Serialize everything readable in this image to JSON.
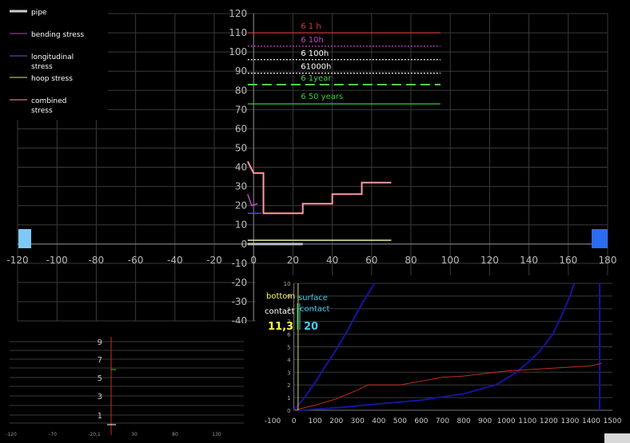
{
  "main_chart": {
    "x_ticks": [
      "-120",
      "-100",
      "-80",
      "-60",
      "-40",
      "-20",
      "0",
      "20",
      "40",
      "60",
      "80",
      "100",
      "120",
      "140",
      "160",
      "180"
    ],
    "y_ticks": [
      "120",
      "110",
      "100",
      "90",
      "80",
      "70",
      "60",
      "50",
      "40",
      "30",
      "20",
      "10",
      "0",
      "-10",
      "-20",
      "-30",
      "-40"
    ],
    "legend": [
      {
        "label": "pipe",
        "color": "#cccccc"
      },
      {
        "label": "bending stress",
        "color": "#b04ab0"
      },
      {
        "label": "longitudinal stress",
        "color": "#5a5ad8"
      },
      {
        "label": "hoop stress",
        "color": "#d8e870"
      },
      {
        "label": "combined stress",
        "color": "#ff9aa0"
      }
    ],
    "sigma_lines": [
      {
        "label": "6 1 h",
        "value": 110,
        "color": "#d83a3a",
        "style": "solid"
      },
      {
        "label": "6 10h",
        "value": 103,
        "color": "#cc44cc",
        "style": "dotted"
      },
      {
        "label": "6 100h",
        "value": 96,
        "color": "#ffffff",
        "style": "dotted"
      },
      {
        "label": "61000h",
        "value": 89,
        "color": "#ffffff",
        "style": "dotted"
      },
      {
        "label": "6 1year",
        "value": 83,
        "color": "#55cc55",
        "style": "dashed"
      },
      {
        "label": "6 50 years",
        "value": 73,
        "color": "#33cc33",
        "style": "solid"
      }
    ]
  },
  "bottom_left_chart": {
    "y_ticks": [
      "9",
      "7",
      "5",
      "3",
      "1"
    ],
    "x_ticks": [
      "-120",
      "-70",
      "-20,1",
      "30",
      "80",
      "130"
    ]
  },
  "bottom_right_chart": {
    "x_ticks": [
      "-100",
      "0",
      "100",
      "200",
      "300",
      "400",
      "500",
      "600",
      "700",
      "800",
      "900",
      "1000",
      "1100",
      "1200",
      "1300",
      "1400",
      "1500"
    ],
    "y_ticks": [
      "10",
      "9",
      "8",
      "7",
      "6",
      "5",
      "4",
      "3",
      "2",
      "1",
      "0"
    ],
    "bottom_label": "bottom",
    "contact_label": "contact",
    "surface_label": "surface",
    "surface_contact_label": "contact",
    "bottom_value": "11,3",
    "surface_value": "20"
  },
  "chart_data": [
    {
      "type": "line",
      "title": "",
      "xlim": [
        -120,
        180
      ],
      "ylim": [
        -40,
        120
      ],
      "grid": true,
      "legend_placement": "top-left",
      "series": [
        {
          "name": "pipe",
          "points": [
            [
              -3,
              0
            ],
            [
              25,
              0
            ]
          ]
        },
        {
          "name": "bending stress",
          "points": [
            [
              -3,
              26
            ],
            [
              -1,
              20
            ],
            [
              2,
              21
            ]
          ]
        },
        {
          "name": "longitudinal stress",
          "points": [
            [
              -3,
              16
            ],
            [
              4,
              16
            ]
          ]
        },
        {
          "name": "hoop stress",
          "points": [
            [
              -3,
              2
            ],
            [
              70,
              2
            ]
          ]
        },
        {
          "name": "combined stress",
          "points": [
            [
              -3,
              43
            ],
            [
              0,
              37
            ],
            [
              5,
              37
            ],
            [
              5,
              16
            ],
            [
              25,
              16
            ],
            [
              25,
              21
            ],
            [
              40,
              21
            ],
            [
              40,
              26
            ],
            [
              55,
              26
            ],
            [
              55,
              32
            ],
            [
              70,
              32
            ]
          ]
        },
        {
          "name": "6 1 h",
          "points": [
            [
              -3,
              110
            ],
            [
              95,
              110
            ]
          ]
        },
        {
          "name": "6 10h",
          "points": [
            [
              -3,
              103
            ],
            [
              95,
              103
            ]
          ]
        },
        {
          "name": "6 100h",
          "points": [
            [
              -3,
              96
            ],
            [
              95,
              96
            ]
          ]
        },
        {
          "name": "61000h",
          "points": [
            [
              -3,
              89
            ],
            [
              95,
              89
            ]
          ]
        },
        {
          "name": "6 1year",
          "points": [
            [
              -3,
              83
            ],
            [
              95,
              83
            ]
          ]
        },
        {
          "name": "6 50 years",
          "points": [
            [
              -3,
              73
            ],
            [
              95,
              73
            ]
          ]
        }
      ]
    },
    {
      "type": "line",
      "title": "",
      "xlim": [
        -100,
        1500
      ],
      "ylim": [
        0,
        10
      ],
      "grid": true,
      "series": [
        {
          "color": "#1414a0",
          "points": [
            [
              0,
              0
            ],
            [
              50,
              1
            ],
            [
              100,
              2.2
            ],
            [
              150,
              3.5
            ],
            [
              200,
              4.8
            ],
            [
              250,
              6.2
            ],
            [
              300,
              7.8
            ],
            [
              350,
              9.2
            ],
            [
              380,
              10
            ]
          ]
        },
        {
          "color": "#1414a0",
          "points": [
            [
              20,
              0
            ],
            [
              200,
              0.2
            ],
            [
              400,
              0.5
            ],
            [
              600,
              0.8
            ],
            [
              800,
              1.3
            ],
            [
              950,
              2
            ],
            [
              1050,
              3
            ],
            [
              1150,
              4.5
            ],
            [
              1220,
              6
            ],
            [
              1270,
              7.8
            ],
            [
              1300,
              9
            ],
            [
              1320,
              10
            ]
          ]
        },
        {
          "color": "#1414a0",
          "points": [
            [
              1440,
              0
            ],
            [
              1440,
              10
            ]
          ]
        },
        {
          "color": "#c03020",
          "points": [
            [
              0,
              0
            ],
            [
              100,
              0.4
            ],
            [
              200,
              0.9
            ],
            [
              300,
              1.6
            ],
            [
              350,
              2
            ],
            [
              500,
              2
            ],
            [
              600,
              2.3
            ],
            [
              700,
              2.6
            ],
            [
              800,
              2.7
            ],
            [
              900,
              2.9
            ],
            [
              1000,
              3.1
            ],
            [
              1100,
              3.2
            ],
            [
              1200,
              3.3
            ],
            [
              1300,
              3.4
            ],
            [
              1400,
              3.5
            ],
            [
              1450,
              3.7
            ]
          ]
        },
        {
          "color": "#dddd44",
          "points": [
            [
              20,
              0
            ],
            [
              20,
              10
            ]
          ]
        }
      ]
    }
  ]
}
